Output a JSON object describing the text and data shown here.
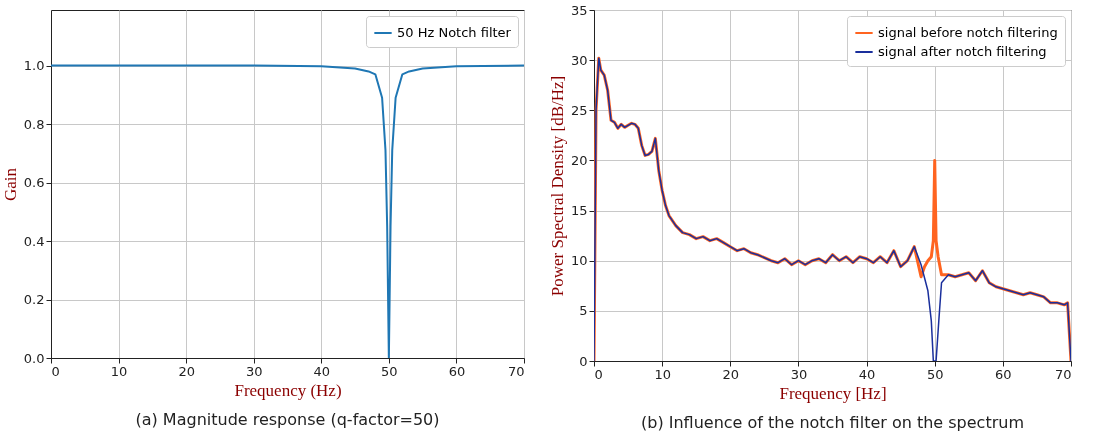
{
  "chart_data": [
    {
      "type": "line",
      "title": "(a) Magnitude response (q-factor=50)",
      "xlabel": "Frequency (Hz)",
      "ylabel": "Gain",
      "xlim": [
        0,
        70
      ],
      "xticks": [
        0,
        10,
        20,
        30,
        40,
        50,
        60,
        70
      ],
      "ylim": [
        0,
        1.19
      ],
      "yticks": [
        {
          "value": 0,
          "label": "0.0"
        },
        {
          "value": 0.2,
          "label": "0.2"
        },
        {
          "value": 0.4,
          "label": "0.4"
        },
        {
          "value": 0.6,
          "label": "0.6"
        },
        {
          "value": 0.8,
          "label": "0.8"
        },
        {
          "value": 1,
          "label": "1.0"
        }
      ],
      "grid": true,
      "legend": "top right",
      "x": [
        0,
        10,
        20,
        30,
        40,
        45,
        47,
        48,
        49,
        49.5,
        49.75,
        50,
        50.25,
        50.5,
        51,
        52,
        53,
        55,
        60,
        70
      ],
      "series": [
        {
          "name": "50 Hz Notch filter",
          "color": "#1f77b4",
          "values": [
            1,
            1,
            1,
            1,
            0.998,
            0.99,
            0.98,
            0.97,
            0.89,
            0.71,
            0.45,
            0,
            0.45,
            0.71,
            0.89,
            0.97,
            0.98,
            0.99,
            0.998,
            1
          ]
        }
      ]
    },
    {
      "type": "line",
      "title": "(b) Influence of the notch filter on the spectrum",
      "xlabel": "Frequency [Hz]",
      "ylabel": "Power Spectral Density [dB/Hz]",
      "xlim": [
        0,
        70
      ],
      "xticks": [
        0,
        10,
        20,
        30,
        40,
        50,
        60,
        70
      ],
      "ylim": [
        0,
        35
      ],
      "yticks": [
        0,
        5,
        10,
        15,
        20,
        25,
        30,
        35
      ],
      "grid": true,
      "legend": "top right",
      "series": [
        {
          "name": "signal before notch filtering",
          "color": "#ff6420",
          "x": [
            0,
            0.3,
            0.7,
            1,
            1.5,
            2,
            2.5,
            3,
            3.5,
            4,
            4.5,
            5,
            5.5,
            6,
            6.5,
            7,
            7.5,
            8,
            8.5,
            9,
            9.5,
            10,
            10.5,
            11,
            12,
            13,
            14,
            15,
            16,
            17,
            18,
            19,
            20,
            21,
            22,
            23,
            24,
            25,
            26,
            27,
            28,
            29,
            30,
            31,
            32,
            33,
            34,
            35,
            36,
            37,
            38,
            39,
            40,
            41,
            42,
            43,
            44,
            45,
            46,
            47,
            48,
            48.5,
            49,
            49.5,
            49.8,
            50,
            50.2,
            50.5,
            51,
            52,
            53,
            54,
            55,
            56,
            57,
            58,
            59,
            60,
            61,
            62,
            63,
            64,
            65,
            66,
            67,
            68,
            69,
            69.5,
            70
          ],
          "values": [
            0,
            25,
            30.2,
            29,
            28.5,
            27,
            24,
            23.8,
            23.2,
            23.6,
            23.3,
            23.5,
            23.7,
            23.6,
            23.2,
            21.5,
            20.5,
            20.6,
            20.9,
            22.2,
            19,
            17,
            15.5,
            14.5,
            13.5,
            12.8,
            12.6,
            12.2,
            12.4,
            12,
            12.2,
            11.8,
            11.4,
            11,
            11.2,
            10.8,
            10.6,
            10.3,
            10,
            9.8,
            10.2,
            9.6,
            10,
            9.6,
            10,
            10.2,
            9.8,
            10.6,
            10,
            10.4,
            9.8,
            10.4,
            10.2,
            9.8,
            10.4,
            9.8,
            11,
            9.4,
            10,
            11.4,
            8.4,
            9.4,
            10,
            10.4,
            12,
            20,
            12,
            10.4,
            8.6,
            8.6,
            8.4,
            8.6,
            8.8,
            8,
            9,
            7.8,
            7.4,
            7.2,
            7,
            6.8,
            6.6,
            6.8,
            6.6,
            6.4,
            5.8,
            5.8,
            5.6,
            5.8,
            0
          ]
        },
        {
          "name": "signal after notch filtering",
          "color": "#1a2f9c",
          "x": [
            0,
            0.3,
            0.7,
            1,
            1.5,
            2,
            2.5,
            3,
            3.5,
            4,
            4.5,
            5,
            5.5,
            6,
            6.5,
            7,
            7.5,
            8,
            8.5,
            9,
            9.5,
            10,
            10.5,
            11,
            12,
            13,
            14,
            15,
            16,
            17,
            18,
            19,
            20,
            21,
            22,
            23,
            24,
            25,
            26,
            27,
            28,
            29,
            30,
            31,
            32,
            33,
            34,
            35,
            36,
            37,
            38,
            39,
            40,
            41,
            42,
            43,
            44,
            45,
            46,
            47,
            48,
            49,
            49.5,
            49.8,
            50.2,
            50.6,
            51,
            52,
            53,
            54,
            55,
            56,
            57,
            58,
            59,
            60,
            61,
            62,
            63,
            64,
            65,
            66,
            67,
            68,
            69,
            69.5,
            70
          ],
          "values": [
            0,
            25,
            30.2,
            29,
            28.5,
            27,
            24,
            23.8,
            23.2,
            23.6,
            23.3,
            23.5,
            23.7,
            23.6,
            23.2,
            21.5,
            20.5,
            20.6,
            20.9,
            22.2,
            19,
            17,
            15.5,
            14.5,
            13.5,
            12.8,
            12.6,
            12.2,
            12.4,
            12,
            12.2,
            11.8,
            11.4,
            11,
            11.2,
            10.8,
            10.6,
            10.3,
            10,
            9.8,
            10.2,
            9.6,
            10,
            9.6,
            10,
            10.2,
            9.8,
            10.6,
            10,
            10.4,
            9.8,
            10.4,
            10.2,
            9.8,
            10.4,
            9.8,
            11,
            9.4,
            10,
            11.4,
            9.6,
            7,
            4,
            0,
            0,
            4,
            7.8,
            8.6,
            8.4,
            8.6,
            8.8,
            8,
            9,
            7.8,
            7.4,
            7.2,
            7,
            6.8,
            6.6,
            6.8,
            6.6,
            6.4,
            5.8,
            5.8,
            5.6,
            5.8,
            0
          ]
        }
      ]
    }
  ]
}
